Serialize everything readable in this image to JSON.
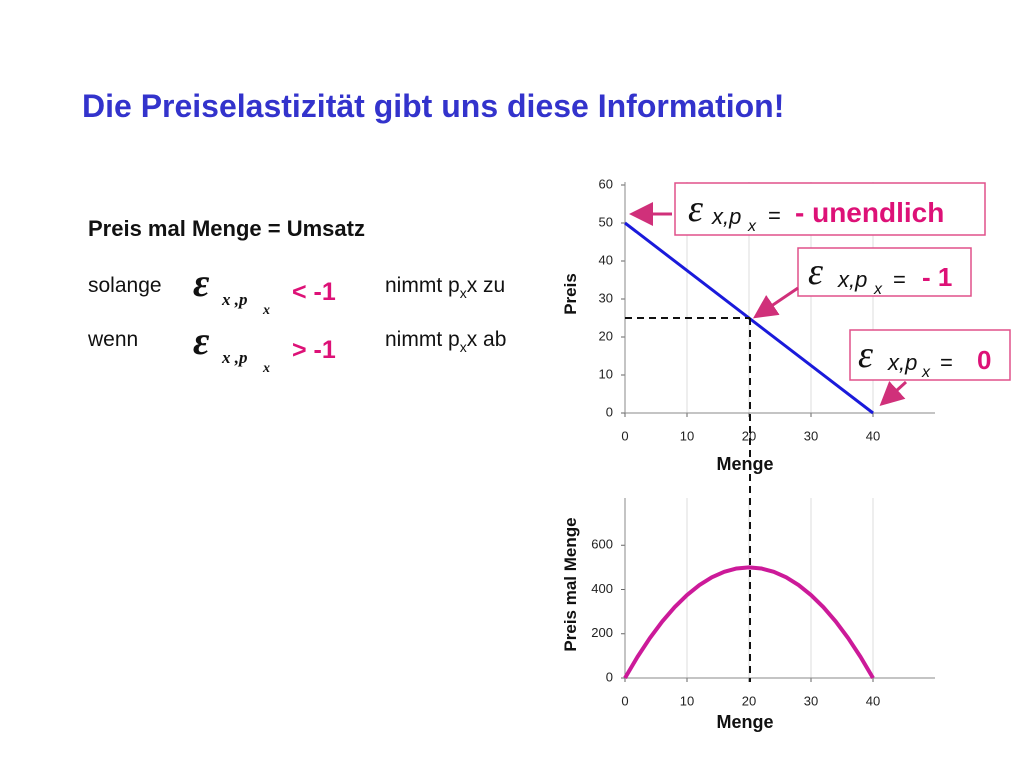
{
  "title": "Die Preiselastizität gibt uns diese Information!",
  "text": {
    "heading": "Preis mal Menge = Umsatz",
    "rows": [
      {
        "prefix": "solange",
        "symbol": "ε",
        "sub": "x ,p",
        "subsub": "x",
        "relation": "< -1",
        "verb": "nimmt p",
        "verb_sub": "x",
        "rest": "x zu"
      },
      {
        "prefix": "wenn",
        "symbol": "ε",
        "sub": "x ,p",
        "subsub": "x",
        "relation": "> -1",
        "verb": "nimmt p",
        "verb_sub": "x",
        "rest": "x ab"
      }
    ]
  },
  "annotations": [
    {
      "symbol": "ε",
      "sub": "x,p",
      "subsub": "x",
      "eq": "=",
      "value": "- unendlich"
    },
    {
      "symbol": "ε",
      "sub": "x,p",
      "subsub": "x",
      "eq": "=",
      "value": "- 1"
    },
    {
      "symbol": "ε",
      "sub": "x,p",
      "subsub": "x",
      "eq": "=",
      "value": "0"
    }
  ],
  "chart_data": [
    {
      "type": "line",
      "x_label": "Menge",
      "y_label": "Preis",
      "x": [
        0,
        40
      ],
      "values": [
        50,
        0
      ],
      "color": "#1a1adb",
      "xlim": [
        0,
        50
      ],
      "ylim": [
        0,
        60
      ],
      "xticks": [
        0,
        10,
        20,
        30,
        40
      ],
      "yticks": [
        0,
        10,
        20,
        30,
        40,
        50,
        60
      ],
      "grid": "x"
    },
    {
      "type": "line",
      "x_label": "Menge",
      "y_label": "Preis mal Menge",
      "x": [
        0,
        2,
        4,
        6,
        8,
        10,
        12,
        14,
        16,
        18,
        20,
        22,
        24,
        26,
        28,
        30,
        32,
        34,
        36,
        38,
        40
      ],
      "values": [
        0,
        95,
        180,
        255,
        320,
        375,
        420,
        455,
        480,
        495,
        500,
        495,
        480,
        455,
        420,
        375,
        320,
        255,
        180,
        95,
        0
      ],
      "color": "#cc1a99",
      "xlim": [
        0,
        50
      ],
      "ylim": [
        0,
        800
      ],
      "xticks": [
        0,
        10,
        20,
        30,
        40
      ],
      "yticks": [
        0,
        200,
        400,
        600
      ],
      "grid": "x"
    }
  ]
}
